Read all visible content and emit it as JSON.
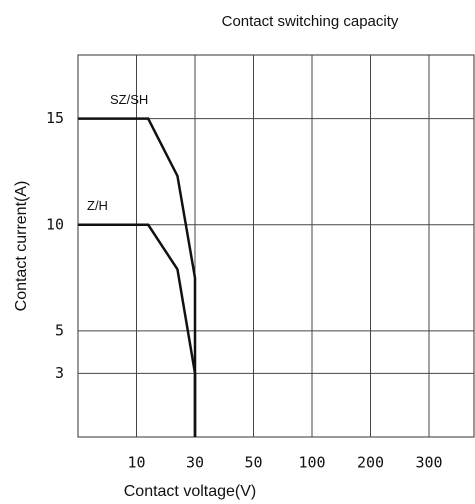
{
  "chart_data": {
    "type": "line",
    "title": "Contact switching capacity",
    "x_label": "Contact voltage(V)",
    "y_label": "Contact current(A)",
    "xlim": [
      0,
      400
    ],
    "xticks": [
      10,
      30,
      50,
      100,
      200,
      300
    ],
    "ylim": [
      0,
      18
    ],
    "yticks": [
      3,
      5,
      10,
      15
    ],
    "grid": true,
    "series": [
      {
        "name": "SZ/SH",
        "color": "#111111",
        "x": [
          0,
          14,
          24,
          30,
          30
        ],
        "values": [
          15,
          15,
          12.3,
          7.5,
          0
        ]
      },
      {
        "name": "Z/H",
        "color": "#111111",
        "x": [
          0,
          14,
          24,
          30,
          30
        ],
        "values": [
          10,
          10,
          7.9,
          3,
          0
        ]
      }
    ]
  }
}
